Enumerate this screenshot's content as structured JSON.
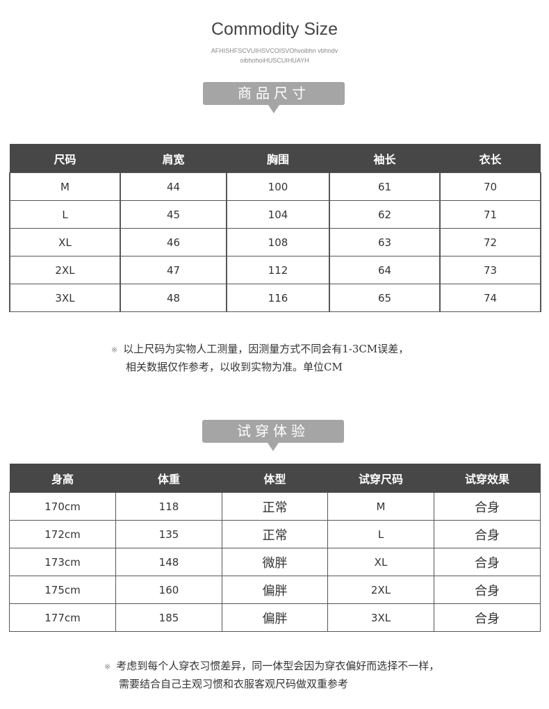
{
  "header": {
    "title": "Commodity Size",
    "subtitle_line1": "AFHISHFSCVUIHSVCOISVOhvoibhn vbhndv",
    "subtitle_line2": "oibhohoiHUSCUIHUAYH"
  },
  "size_section": {
    "badge": "商品尺寸",
    "columns": [
      "尺码",
      "肩宽",
      "胸围",
      "袖长",
      "衣长"
    ],
    "rows": [
      [
        "M",
        "44",
        "100",
        "61",
        "70"
      ],
      [
        "L",
        "45",
        "104",
        "62",
        "71"
      ],
      [
        "XL",
        "46",
        "108",
        "63",
        "72"
      ],
      [
        "2XL",
        "47",
        "112",
        "64",
        "73"
      ],
      [
        "3XL",
        "48",
        "116",
        "65",
        "74"
      ]
    ],
    "note_mark": "※",
    "note_line1": "以上尺码为实物人工测量，因测量方式不同会有1-3CM误差，",
    "note_line2": "相关数据仅作参考，以收到实物为准。单位CM"
  },
  "fit_section": {
    "badge": "试穿体验",
    "columns": [
      "身高",
      "体重",
      "体型",
      "试穿尺码",
      "试穿效果"
    ],
    "rows": [
      [
        "170cm",
        "118",
        "正常",
        "M",
        "合身"
      ],
      [
        "172cm",
        "135",
        "正常",
        "L",
        "合身"
      ],
      [
        "173cm",
        "148",
        "微胖",
        "XL",
        "合身"
      ],
      [
        "175cm",
        "160",
        "偏胖",
        "2XL",
        "合身"
      ],
      [
        "177cm",
        "185",
        "偏胖",
        "3XL",
        "合身"
      ]
    ],
    "note_mark": "※",
    "note_line1": "考虑到每个人穿衣习惯差异，同一体型会因为穿衣偏好而选择不一样，",
    "note_line2": "需要结合自己主观习惯和衣服客观尺码做双重参考"
  },
  "colors": {
    "header_bg": "#474747",
    "badge_bg": "#a5a5a5",
    "border": "#555555"
  }
}
